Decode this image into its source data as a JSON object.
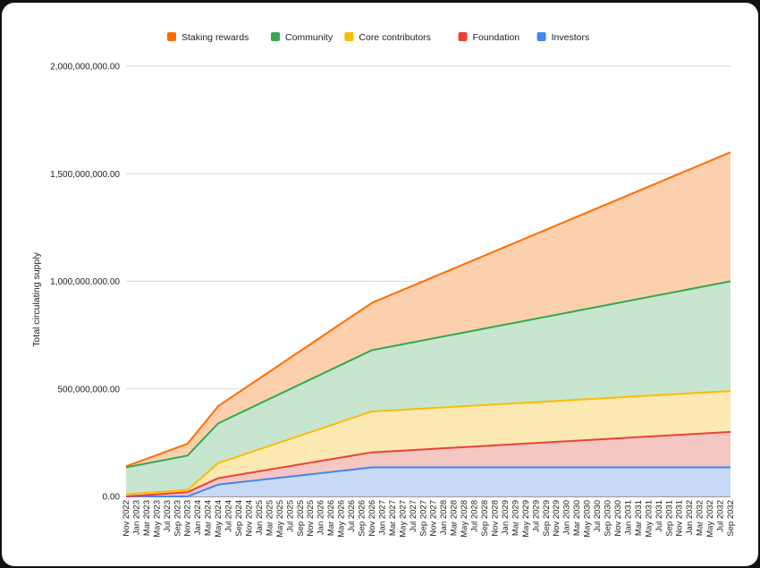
{
  "chart_data": {
    "type": "area",
    "stacked": true,
    "ylabel": "Total circulating supply",
    "ylim": [
      0,
      2000000000
    ],
    "yticks": [
      {
        "value": 0,
        "label": "0.00"
      },
      {
        "value": 500000000,
        "label": "500,000,000.00"
      },
      {
        "value": 1000000000,
        "label": "1,000,000,000.00"
      },
      {
        "value": 1500000000,
        "label": "1,500,000,000.00"
      },
      {
        "value": 2000000000,
        "label": "2,000,000,000.00"
      }
    ],
    "grid": true,
    "legend_position": "top",
    "x_labels": [
      "Nov 2022",
      "Jan 2023",
      "Mar 2023",
      "May 2023",
      "Jul 2023",
      "Sep 2023",
      "Nov 2023",
      "Jan 2024",
      "Mar 2024",
      "May 2024",
      "Jul 2024",
      "Sep 2024",
      "Nov 2024",
      "Jan 2025",
      "Mar 2025",
      "May 2025",
      "Jul 2025",
      "Sep 2025",
      "Nov 2025",
      "Jan 2026",
      "Mar 2026",
      "May 2026",
      "Jul 2026",
      "Sep 2026",
      "Nov 2026",
      "Jan 2027",
      "Mar 2027",
      "May 2027",
      "Jul 2027",
      "Sep 2027",
      "Nov 2027",
      "Jan 2028",
      "Mar 2028",
      "May 2028",
      "Jul 2028",
      "Sep 2028",
      "Nov 2028",
      "Jan 2029",
      "Mar 2029",
      "May 2029",
      "Jul 2029",
      "Sep 2029",
      "Nov 2029",
      "Jan 2030",
      "Mar 2030",
      "May 2030",
      "Jul 2030",
      "Sep 2030",
      "Nov 2030",
      "Jan 2031",
      "Mar 2031",
      "May 2031",
      "Jul 2031",
      "Sep 2031",
      "Nov 2031",
      "Jan 2032",
      "Mar 2032",
      "May 2032",
      "Jul 2032",
      "Sep 2032"
    ],
    "x_label_display": [
      "Nov 2022",
      "Jan 2023",
      "Mar 2023",
      "May 2023",
      "Jul 2023",
      "Sep 2023",
      "Nov 2023",
      "Jan 2024",
      "Mar 2024",
      "May 2024",
      "Jul 2024",
      "Sep 2024",
      "Nov 2024",
      "Jan 2025",
      "Mar 2025",
      "May 2025",
      "Jul 2025",
      "Sep 2025",
      "Nov 2025",
      "Jan 2026",
      "Mar 2026",
      "May 2026",
      "Jul 2026",
      "Sep 2026",
      "Nov 2026",
      "Jan 2027",
      "Mar 2027",
      "May 2027",
      "Jul 2027",
      "Sep 2027",
      "Nov 2027",
      "Jan 2028",
      "Mar 2028",
      "May 2028",
      "Jul 2028",
      "Sep 2028",
      "Nov 2028",
      "Jan 2029",
      "Mar 2029",
      "May 2029",
      "Jul 2029",
      "Sep 2029",
      "Nov 2029",
      "Jan 2030",
      "Mar 2030",
      "May 2030",
      "Jul 2030",
      "Sep 2030",
      "Nov 2030",
      "Jan 2031",
      "Mar 2031",
      "May 2031",
      "Jul 2031",
      "Sep 2031",
      "Nov 2031",
      "Jan 2032",
      "Mar 2032",
      "May 2032",
      "Jul 2032",
      "Sep 2032"
    ],
    "series": [
      {
        "name": "Investors",
        "color": "#4285f4",
        "fill": "#c9daf8",
        "points": [
          [
            "Nov 2022",
            0
          ],
          [
            "Nov 2023",
            0
          ],
          [
            "May 2024",
            55000000
          ],
          [
            "Nov 2026",
            135000000
          ],
          [
            "Sep 2032",
            135000000
          ]
        ]
      },
      {
        "name": "Foundation",
        "color": "#ea4335",
        "fill": "#f4c7c3",
        "points": [
          [
            "Nov 2022",
            0
          ],
          [
            "Nov 2023",
            20000000
          ],
          [
            "May 2024",
            30000000
          ],
          [
            "Nov 2026",
            70000000
          ],
          [
            "Sep 2032",
            165000000
          ]
        ]
      },
      {
        "name": "Core contributors",
        "color": "#fbbc04",
        "fill": "#fce8b2",
        "points": [
          [
            "Nov 2022",
            10000000
          ],
          [
            "Nov 2023",
            10000000
          ],
          [
            "May 2024",
            70000000
          ],
          [
            "Nov 2026",
            190000000
          ],
          [
            "Sep 2032",
            190000000
          ]
        ]
      },
      {
        "name": "Community",
        "color": "#34a853",
        "fill": "#c7e5cf",
        "points": [
          [
            "Nov 2022",
            125000000
          ],
          [
            "Nov 2023",
            160000000
          ],
          [
            "May 2024",
            185000000
          ],
          [
            "Nov 2026",
            285000000
          ],
          [
            "Sep 2032",
            510000000
          ]
        ]
      },
      {
        "name": "Staking rewards",
        "color": "#ff6d01",
        "fill": "#fcd0ac",
        "points": [
          [
            "Nov 2022",
            5000000
          ],
          [
            "Nov 2023",
            55000000
          ],
          [
            "May 2024",
            80000000
          ],
          [
            "Nov 2026",
            220000000
          ],
          [
            "Sep 2032",
            600000000
          ]
        ]
      }
    ],
    "legend_order": [
      "Staking rewards",
      "Community",
      "Core contributors",
      "Foundation",
      "Investors"
    ]
  }
}
